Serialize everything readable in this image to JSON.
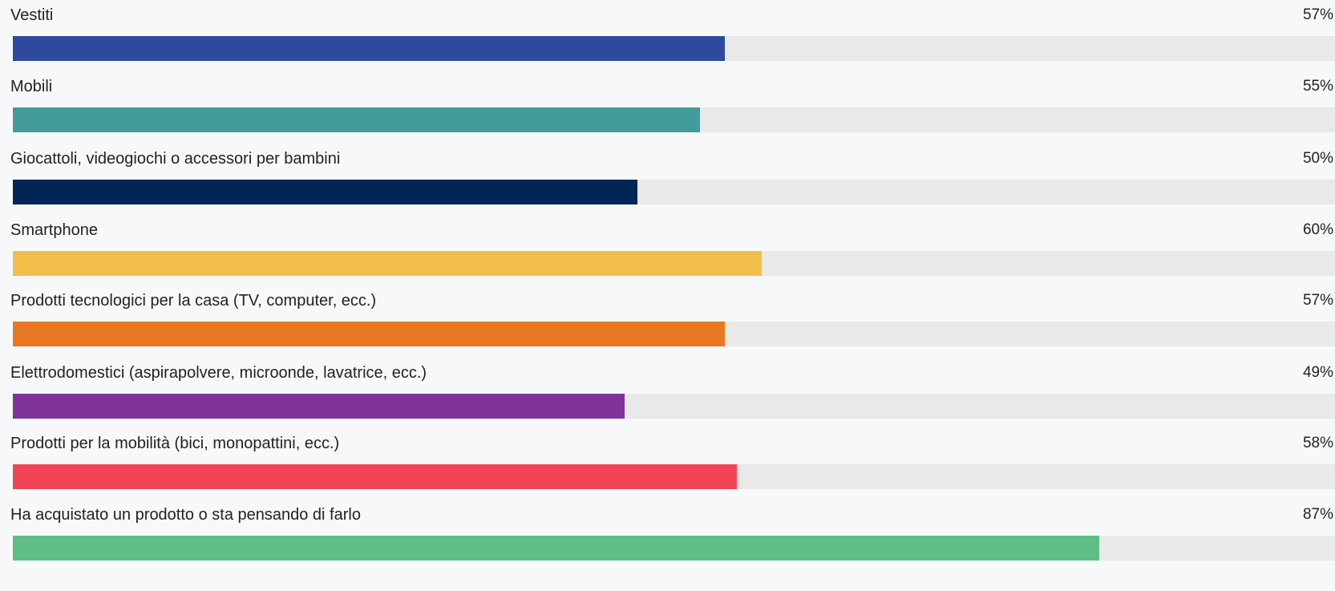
{
  "chart_data": {
    "type": "bar",
    "orientation": "horizontal",
    "title": "",
    "xlabel": "",
    "ylabel": "",
    "xlim": [
      0,
      100
    ],
    "grid": false,
    "categories": [
      "Vestiti",
      "Mobili",
      "Giocattoli, videogiochi o accessori per bambini",
      "Smartphone",
      "Prodotti tecnologici per la casa (TV, computer, ecc.)",
      "Elettrodomestici (aspirapolvere, microonde, lavatrice, ecc.)",
      "Prodotti per la mobilità (bici, monopattini, ecc.)",
      "Ha acquistato un prodotto o sta pensando di farlo"
    ],
    "values": [
      57,
      55,
      50,
      60,
      57,
      49,
      58,
      87
    ],
    "value_labels": [
      "57%",
      "55%",
      "50%",
      "60%",
      "57%",
      "49%",
      "58%",
      "87%"
    ],
    "colors": [
      "#2e4a9e",
      "#439b9b",
      "#012555",
      "#f2be4a",
      "#e87722",
      "#7f3399",
      "#f24457",
      "#5ebe86"
    ],
    "track_color": "#e9e9e9"
  }
}
